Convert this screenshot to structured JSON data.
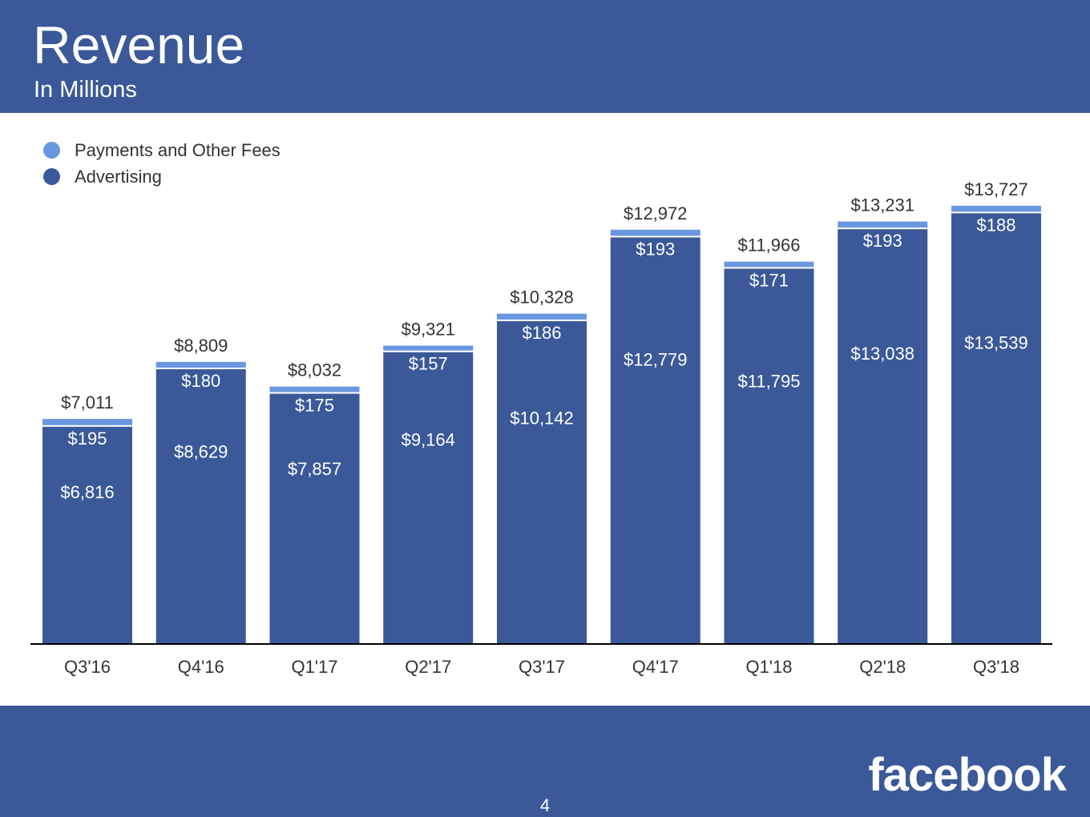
{
  "slide": {
    "title": "Revenue",
    "subtitle": "In Millions",
    "page_number": "4",
    "logo_text": "facebook",
    "colors": {
      "brand": "#3b5998",
      "advertising": "#3b5998",
      "payments": "#6a98e0",
      "background": "#ffffff"
    }
  },
  "legend": {
    "items": [
      {
        "label": "Payments and Other Fees",
        "color": "#6a98e0"
      },
      {
        "label": "Advertising",
        "color": "#3b5998"
      }
    ],
    "position": "top-left"
  },
  "chart_data": {
    "type": "bar",
    "stacked": true,
    "categories": [
      "Q3'16",
      "Q4'16",
      "Q1'17",
      "Q2'17",
      "Q3'17",
      "Q4'17",
      "Q1'18",
      "Q2'18",
      "Q3'18"
    ],
    "series": [
      {
        "name": "Advertising",
        "color": "#3b5998",
        "values": [
          6816,
          8629,
          7857,
          9164,
          10142,
          12779,
          11795,
          13038,
          13539
        ],
        "labels": [
          "$6,816",
          "$8,629",
          "$7,857",
          "$9,164",
          "$10,142",
          "$12,779",
          "$11,795",
          "$13,038",
          "$13,539"
        ]
      },
      {
        "name": "Payments and Other Fees",
        "color": "#6a98e0",
        "values": [
          195,
          180,
          175,
          157,
          186,
          193,
          171,
          193,
          188
        ],
        "labels": [
          "$195",
          "$180",
          "$175",
          "$157",
          "$186",
          "$193",
          "$171",
          "$193",
          "$188"
        ]
      }
    ],
    "totals": [
      7011,
      8809,
      8032,
      9321,
      10328,
      12972,
      11966,
      13231,
      13727
    ],
    "total_labels": [
      "$7,011",
      "$8,809",
      "$8,032",
      "$9,321",
      "$10,328",
      "$12,972",
      "$11,966",
      "$13,231",
      "$13,727"
    ],
    "title": "Revenue",
    "subtitle": "In Millions",
    "xlabel": "",
    "ylabel": "",
    "ylim": [
      0,
      16700
    ],
    "grid": false,
    "legend_position": "top-left"
  }
}
